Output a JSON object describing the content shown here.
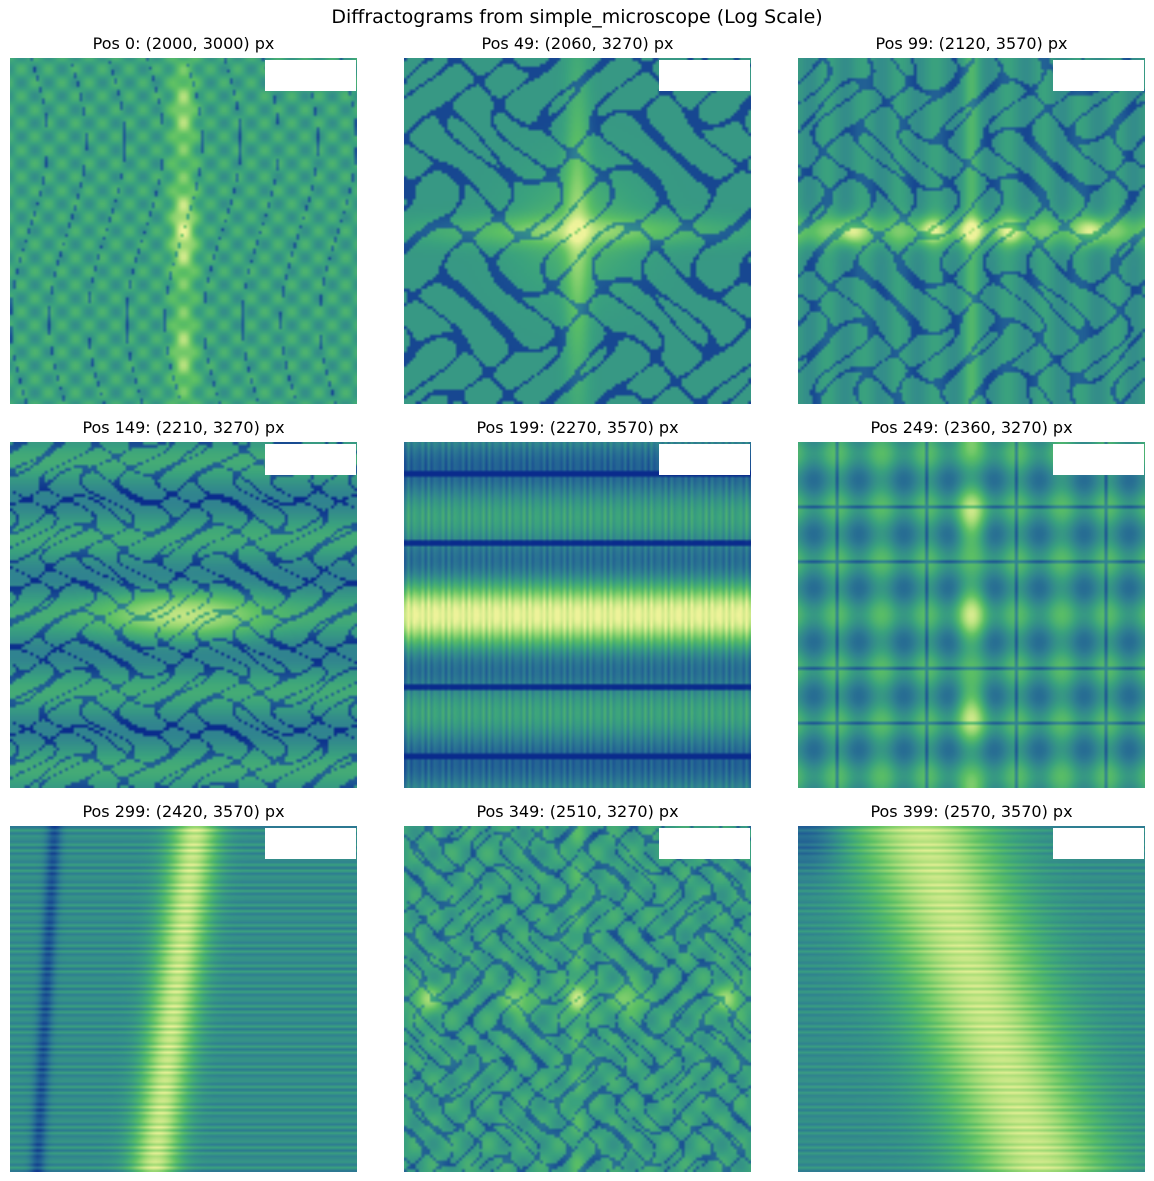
{
  "figure": {
    "title": "Diffractograms from simple_microscope (Log Scale)"
  },
  "colormap": [
    "#0a2b8c",
    "#1f5a94",
    "#2f7f92",
    "#3aa27e",
    "#5cc064",
    "#a6dc76",
    "#eef39a"
  ],
  "panels": [
    {
      "title": "Pos 0: (2000, 3000) px",
      "pattern": "vertical-streak"
    },
    {
      "title": "Pos 49: (2060, 3270) px",
      "pattern": "speckle-cross"
    },
    {
      "title": "Pos 99: (2120, 3570) px",
      "pattern": "horizontal-dots"
    },
    {
      "title": "Pos 149: (2210, 3270) px",
      "pattern": "speckle-center"
    },
    {
      "title": "Pos 199: (2270, 3570) px",
      "pattern": "horizontal-band"
    },
    {
      "title": "Pos 249: (2360, 3270) px",
      "pattern": "grid-vertical-dots"
    },
    {
      "title": "Pos 299: (2420, 3570) px",
      "pattern": "tilted-streak"
    },
    {
      "title": "Pos 349: (2510, 3270) px",
      "pattern": "grid-horizontal-dots"
    },
    {
      "title": "Pos 399: (2570, 3570) px",
      "pattern": "diagonal-band"
    }
  ]
}
